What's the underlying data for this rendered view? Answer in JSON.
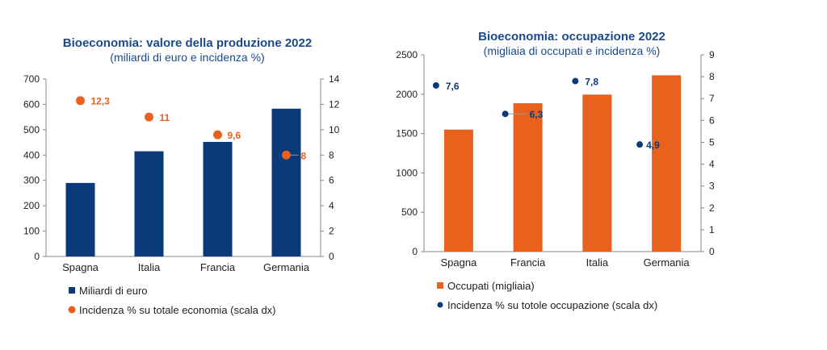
{
  "colors": {
    "navy": "#0b3a7a",
    "orange": "#e8621e",
    "title": "#1a4a8c",
    "axis": "#888888"
  },
  "chart_data": [
    {
      "type": "bar",
      "title": "Bioeconomia: valore della produzione 2022",
      "subtitle": "(miliardi di euro e incidenza %)",
      "categories": [
        "Spagna",
        "Italia",
        "Francia",
        "Germania"
      ],
      "ylim": [
        0,
        700
      ],
      "yticks": [
        0,
        100,
        200,
        300,
        400,
        500,
        600,
        700
      ],
      "y2lim": [
        0,
        14
      ],
      "y2ticks": [
        0,
        2,
        4,
        6,
        8,
        10,
        12,
        14
      ],
      "series": [
        {
          "name": "Miliardi di euro",
          "kind": "bar",
          "axis": "left",
          "color": "#0b3a7a",
          "values": [
            290,
            415,
            452,
            583
          ]
        },
        {
          "name": "Incidenza % su totale economia (scala dx)",
          "kind": "point",
          "axis": "right",
          "color": "#e8621e",
          "values": [
            12.3,
            11,
            9.6,
            8
          ],
          "labels": [
            "12,3",
            "11",
            "9,6",
            "8"
          ]
        }
      ],
      "legend": "bottom"
    },
    {
      "type": "bar",
      "title": "Bioeconomia: occupazione 2022",
      "subtitle": "(migliaia di occupati e incidenza %)",
      "categories": [
        "Spagna",
        "Francia",
        "Italia",
        "Germania"
      ],
      "ylim": [
        0,
        2500
      ],
      "yticks": [
        0,
        500,
        1000,
        1500,
        2000,
        2500
      ],
      "y2lim": [
        0,
        9
      ],
      "y2ticks": [
        0,
        1,
        2,
        3,
        4,
        5,
        6,
        7,
        8,
        9
      ],
      "series": [
        {
          "name": "Occupati (migliaia)",
          "kind": "bar",
          "axis": "left",
          "color": "#e8621e",
          "values": [
            1550,
            1885,
            1995,
            2240
          ]
        },
        {
          "name": "Incidenza % su totole occupazione (scala dx)",
          "kind": "point",
          "axis": "right",
          "color": "#0b3a7a",
          "values": [
            7.6,
            6.3,
            7.8,
            4.9
          ],
          "labels": [
            "7,6",
            "6,3",
            "7,8",
            "4,9"
          ]
        }
      ],
      "legend": "bottom"
    }
  ]
}
